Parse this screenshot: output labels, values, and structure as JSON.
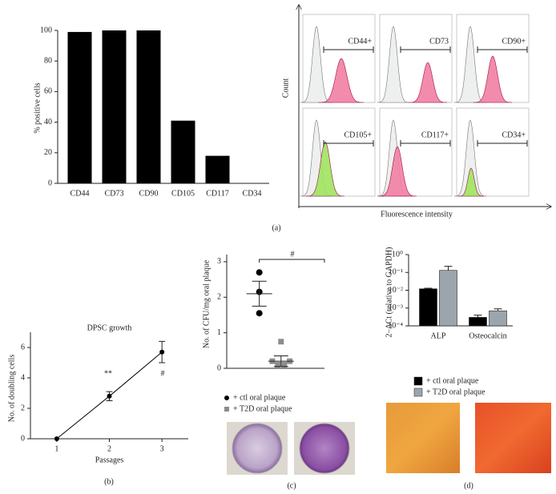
{
  "chart_data": [
    {
      "type": "bar",
      "y_label": "% positive cells",
      "categories": [
        "CD44",
        "CD73",
        "CD90",
        "CD105",
        "CD117",
        "CD34"
      ],
      "values": [
        99,
        100,
        100,
        41,
        18,
        0
      ],
      "color": "#000000",
      "ylim": [
        0,
        100
      ],
      "yticks": [
        0,
        20,
        40,
        60,
        80,
        100
      ]
    },
    {
      "type": "line",
      "title": "DPSC growth",
      "x_label": "Passages",
      "y_label": "No. of doubling cells",
      "x": [
        1,
        2,
        3
      ],
      "values": [
        0,
        2.8,
        5.7
      ],
      "errors": [
        null,
        0.3,
        0.7
      ],
      "color": "#000000",
      "xlim": [
        0.5,
        3.5
      ],
      "xticks": [
        1,
        2,
        3
      ],
      "ylim": [
        0,
        7
      ],
      "yticks": [
        0,
        2,
        4,
        6
      ],
      "annotations": [
        "**",
        "#"
      ]
    },
    {
      "type": "scatter",
      "y_label": "No. of CFU/mg oral plaque",
      "series": [
        {
          "name": "+ ctl oral plaque",
          "color": "#000000",
          "marker": "circle",
          "x": [
            1,
            1,
            1
          ],
          "values": [
            2.7,
            2.15,
            1.55
          ],
          "mean": 2.1,
          "error": 0.35
        },
        {
          "name": "+ T2D oral plaque",
          "color": "#8c8c8c",
          "marker": "square",
          "x": [
            2,
            1.6,
            1.85,
            2.15,
            2.4
          ],
          "values": [
            0.75,
            0.2,
            0.1,
            0.1,
            0.2
          ],
          "mean": 0.2,
          "error": 0.15
        }
      ],
      "xlim": [
        -0.5,
        4
      ],
      "ylim": [
        0,
        3.2
      ],
      "yticks": [
        0,
        1,
        2,
        3
      ],
      "annotations": [
        "#"
      ]
    },
    {
      "type": "bar",
      "log_scale": true,
      "y_label": "2−ΔCt (relative to GAPDH)",
      "categories": [
        "ALP",
        "Osteocalcin"
      ],
      "series": [
        {
          "name": "+ ctl oral plaque",
          "color": "#000000",
          "values": [
            0.012,
            0.0003
          ],
          "errors": [
            0.001,
            0.0001
          ]
        },
        {
          "name": "+ T2D oral plaque",
          "color": "#9aa5ad",
          "values": [
            0.13,
            0.0007
          ],
          "errors": [
            0.09,
            0.0002
          ]
        }
      ],
      "ylim": [
        0.0001,
        1
      ],
      "yticks": [
        {
          "value": 1,
          "label": "10⁰"
        },
        {
          "value": 0.1,
          "label": "10⁻¹"
        },
        {
          "value": 0.01,
          "label": "10⁻²"
        },
        {
          "value": 0.001,
          "label": "10⁻³"
        },
        {
          "value": 0.0001,
          "label": "10⁻⁴"
        }
      ]
    }
  ],
  "flow_panel": {
    "y_label": "Count",
    "x_label": "Fluorescence intensity",
    "plots": [
      {
        "label": "CD44+",
        "color": "#f27fa3"
      },
      {
        "label": "CD73",
        "color": "#f27fa3"
      },
      {
        "label": "CD90+",
        "color": "#f27fa3"
      },
      {
        "label": "CD105+",
        "color": "#9fe35e"
      },
      {
        "label": "CD117+",
        "color": "#f27fa3"
      },
      {
        "label": "CD34+",
        "color": "#9fe35e"
      }
    ]
  },
  "panel_labels": [
    "(a)",
    "(b)",
    "(c)",
    "(d)"
  ]
}
